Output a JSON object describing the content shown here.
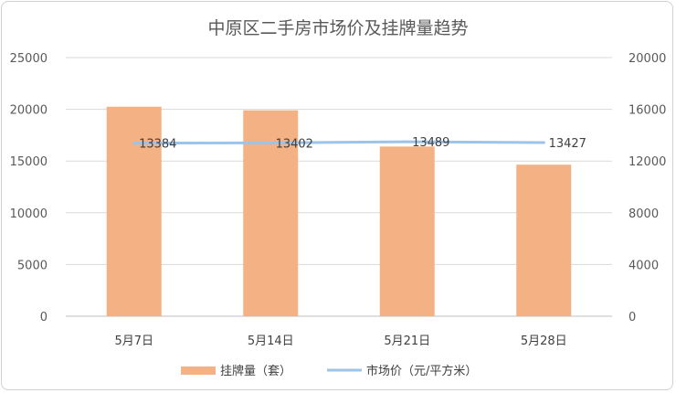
{
  "chart_data": {
    "type": "bar+line",
    "title": "中原区二手房市场价及挂牌量趋势",
    "categories": [
      "5月7日",
      "5月14日",
      "5月21日",
      "5月28日"
    ],
    "series": [
      {
        "name": "挂牌量（套）",
        "type": "bar",
        "axis": "left",
        "color": "#F4B183",
        "values": [
          20250,
          19900,
          16400,
          14650
        ]
      },
      {
        "name": "市场价（元/平方米）",
        "type": "line",
        "axis": "right",
        "color": "#9DC3E6",
        "values": [
          13384,
          13402,
          13489,
          13427
        ],
        "data_labels": [
          "13384",
          "13402",
          "13489",
          "13427"
        ]
      }
    ],
    "y_left": {
      "ylim": [
        0,
        25000
      ],
      "ticks": [
        "0",
        "5000",
        "10000",
        "15000",
        "20000",
        "25000"
      ]
    },
    "y_right": {
      "ylim": [
        0,
        20000
      ],
      "ticks": [
        "0",
        "4000",
        "8000",
        "12000",
        "16000",
        "20000"
      ]
    },
    "grid": true,
    "legend_position": "bottom"
  }
}
